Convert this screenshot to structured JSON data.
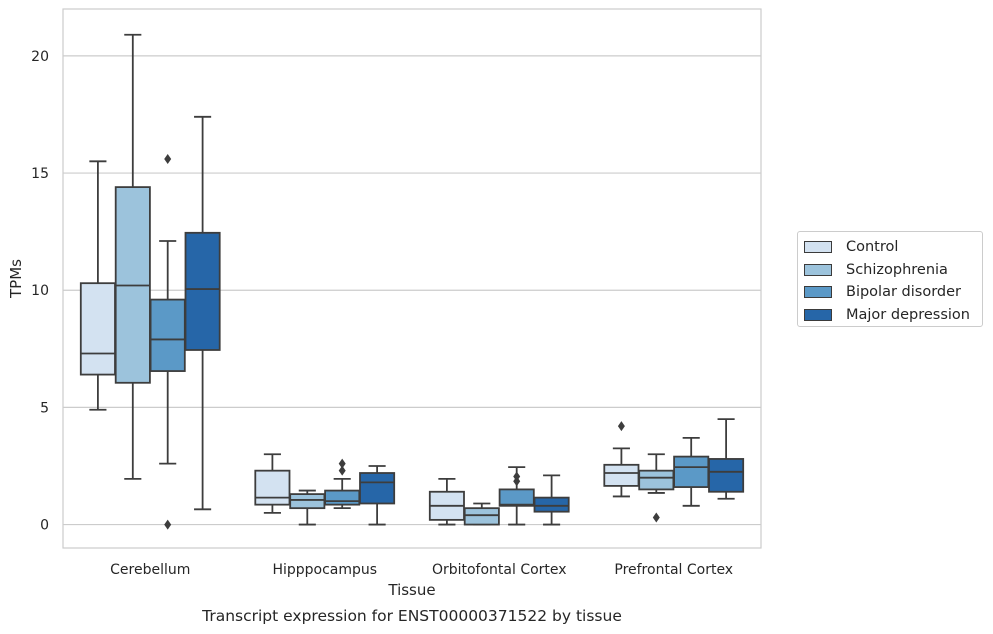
{
  "chart_data": {
    "type": "box",
    "title": "Transcript expression for ENST00000371522 by tissue",
    "xlabel": "Tissue",
    "ylabel": "TPMs",
    "ylim": [
      -1,
      22
    ],
    "yticks": [
      0,
      5,
      10,
      15,
      20
    ],
    "grid": true,
    "legend_position": "right",
    "categories": [
      "Cerebellum",
      "Hipppocampus",
      "Orbitofontal Cortex",
      "Prefrontal Cortex"
    ],
    "series": [
      {
        "name": "Control",
        "color": "#d3e2f1",
        "boxes": [
          {
            "whislo": 4.9,
            "q1": 6.4,
            "med": 7.3,
            "q3": 10.3,
            "whishi": 15.5,
            "fliers": []
          },
          {
            "whislo": 0.5,
            "q1": 0.85,
            "med": 1.15,
            "q3": 2.3,
            "whishi": 3.0,
            "fliers": []
          },
          {
            "whislo": 0.0,
            "q1": 0.2,
            "med": 0.8,
            "q3": 1.4,
            "whishi": 1.95,
            "fliers": []
          },
          {
            "whislo": 1.2,
            "q1": 1.65,
            "med": 2.2,
            "q3": 2.55,
            "whishi": 3.25,
            "fliers": [
              4.2
            ]
          }
        ]
      },
      {
        "name": "Schizophrenia",
        "color": "#9cc3dc",
        "boxes": [
          {
            "whislo": 1.95,
            "q1": 6.05,
            "med": 10.2,
            "q3": 14.4,
            "whishi": 20.9,
            "fliers": []
          },
          {
            "whislo": 0.0,
            "q1": 0.7,
            "med": 1.05,
            "q3": 1.3,
            "whishi": 1.45,
            "fliers": []
          },
          {
            "whislo": 0.0,
            "q1": 0.0,
            "med": 0.4,
            "q3": 0.7,
            "whishi": 0.9,
            "fliers": []
          },
          {
            "whislo": 1.35,
            "q1": 1.5,
            "med": 2.0,
            "q3": 2.3,
            "whishi": 3.0,
            "fliers": [
              0.3
            ]
          }
        ]
      },
      {
        "name": "Bipolar disorder",
        "color": "#5b99c7",
        "boxes": [
          {
            "whislo": 2.6,
            "q1": 6.55,
            "med": 7.9,
            "q3": 9.6,
            "whishi": 12.1,
            "fliers": [
              15.6,
              0.0
            ]
          },
          {
            "whislo": 0.7,
            "q1": 0.85,
            "med": 1.0,
            "q3": 1.45,
            "whishi": 1.95,
            "fliers": [
              2.3,
              2.6
            ]
          },
          {
            "whislo": 0.0,
            "q1": 0.8,
            "med": 0.85,
            "q3": 1.5,
            "whishi": 2.45,
            "fliers": [
              1.85,
              2.05
            ]
          },
          {
            "whislo": 0.8,
            "q1": 1.6,
            "med": 2.45,
            "q3": 2.9,
            "whishi": 3.7,
            "fliers": []
          }
        ]
      },
      {
        "name": "Major depression",
        "color": "#2666a8",
        "boxes": [
          {
            "whislo": 0.65,
            "q1": 7.45,
            "med": 10.05,
            "q3": 12.45,
            "whishi": 17.4,
            "fliers": []
          },
          {
            "whislo": 0.0,
            "q1": 0.9,
            "med": 1.8,
            "q3": 2.2,
            "whishi": 2.5,
            "fliers": []
          },
          {
            "whislo": 0.0,
            "q1": 0.55,
            "med": 0.8,
            "q3": 1.15,
            "whishi": 2.1,
            "fliers": []
          },
          {
            "whislo": 1.1,
            "q1": 1.4,
            "med": 2.25,
            "q3": 2.8,
            "whishi": 4.5,
            "fliers": []
          }
        ]
      }
    ]
  }
}
